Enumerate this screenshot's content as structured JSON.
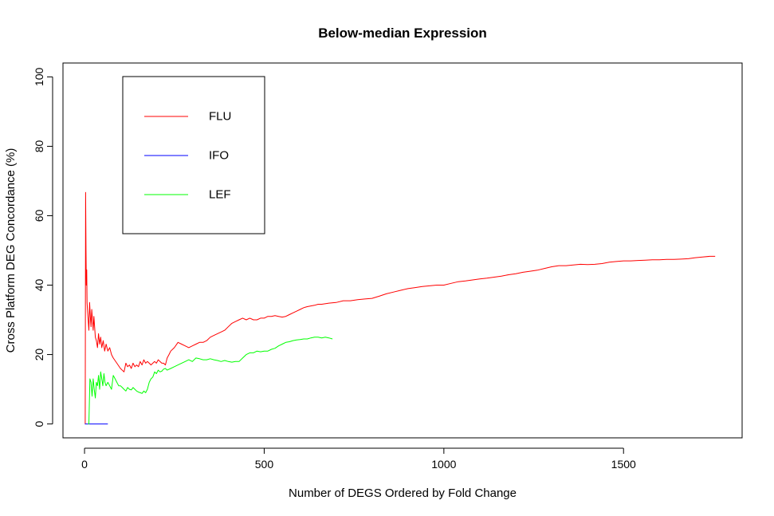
{
  "chart_data": {
    "type": "line",
    "title": "Below-median Expression",
    "xlabel": "Number of DEGS Ordered by Fold Change",
    "ylabel": "Cross Platform DEG Concordance (%)",
    "xlim": [
      -60,
      1830
    ],
    "ylim": [
      -4,
      104
    ],
    "xticks": [
      0,
      500,
      1000,
      1500
    ],
    "yticks": [
      0,
      20,
      40,
      60,
      80,
      100
    ],
    "grid": false,
    "legend_position": "top-left",
    "series": [
      {
        "name": "FLU",
        "color": "#ff0000",
        "points": [
          [
            1,
            0
          ],
          [
            2,
            0
          ],
          [
            3,
            66.7
          ],
          [
            4,
            50
          ],
          [
            5,
            40
          ],
          [
            6,
            44.4
          ],
          [
            7,
            35
          ],
          [
            8,
            33
          ],
          [
            10,
            30
          ],
          [
            12,
            27
          ],
          [
            14,
            35
          ],
          [
            16,
            31
          ],
          [
            18,
            28
          ],
          [
            20,
            33
          ],
          [
            22,
            30
          ],
          [
            24,
            27
          ],
          [
            26,
            31
          ],
          [
            28,
            28
          ],
          [
            30,
            25
          ],
          [
            33,
            24
          ],
          [
            36,
            22
          ],
          [
            39,
            26
          ],
          [
            42,
            23
          ],
          [
            45,
            25
          ],
          [
            48,
            22
          ],
          [
            52,
            24
          ],
          [
            56,
            21
          ],
          [
            60,
            23
          ],
          [
            65,
            21
          ],
          [
            70,
            22
          ],
          [
            75,
            20
          ],
          [
            80,
            19
          ],
          [
            90,
            17.5
          ],
          [
            100,
            16
          ],
          [
            110,
            15
          ],
          [
            115,
            17.5
          ],
          [
            120,
            16.5
          ],
          [
            125,
            17
          ],
          [
            130,
            16
          ],
          [
            135,
            17.5
          ],
          [
            140,
            16.5
          ],
          [
            145,
            17
          ],
          [
            150,
            16.5
          ],
          [
            155,
            18
          ],
          [
            160,
            17
          ],
          [
            165,
            18.5
          ],
          [
            170,
            17.5
          ],
          [
            175,
            18
          ],
          [
            180,
            17.5
          ],
          [
            185,
            17
          ],
          [
            190,
            17.5
          ],
          [
            195,
            18
          ],
          [
            200,
            17.5
          ],
          [
            205,
            18.5
          ],
          [
            210,
            18
          ],
          [
            215,
            17.5
          ],
          [
            220,
            17.5
          ],
          [
            225,
            17
          ],
          [
            230,
            19
          ],
          [
            235,
            20
          ],
          [
            240,
            21
          ],
          [
            250,
            22
          ],
          [
            260,
            23.5
          ],
          [
            270,
            23
          ],
          [
            280,
            22.5
          ],
          [
            290,
            22
          ],
          [
            300,
            22.5
          ],
          [
            310,
            23
          ],
          [
            320,
            23.5
          ],
          [
            330,
            23.5
          ],
          [
            340,
            24
          ],
          [
            350,
            25
          ],
          [
            360,
            25.5
          ],
          [
            370,
            26
          ],
          [
            380,
            26.5
          ],
          [
            390,
            27
          ],
          [
            400,
            28
          ],
          [
            410,
            29
          ],
          [
            420,
            29.5
          ],
          [
            430,
            30
          ],
          [
            440,
            30.5
          ],
          [
            450,
            30
          ],
          [
            460,
            30.5
          ],
          [
            470,
            30
          ],
          [
            480,
            30
          ],
          [
            490,
            30.5
          ],
          [
            500,
            30.5
          ],
          [
            510,
            31
          ],
          [
            520,
            31
          ],
          [
            530,
            31.2
          ],
          [
            540,
            31
          ],
          [
            550,
            30.8
          ],
          [
            560,
            31
          ],
          [
            570,
            31.5
          ],
          [
            580,
            32
          ],
          [
            590,
            32.5
          ],
          [
            600,
            33
          ],
          [
            610,
            33.5
          ],
          [
            620,
            33.8
          ],
          [
            630,
            34
          ],
          [
            640,
            34.2
          ],
          [
            650,
            34.5
          ],
          [
            660,
            34.5
          ],
          [
            680,
            34.8
          ],
          [
            700,
            35
          ],
          [
            720,
            35.5
          ],
          [
            740,
            35.5
          ],
          [
            760,
            35.8
          ],
          [
            780,
            36
          ],
          [
            800,
            36.2
          ],
          [
            820,
            36.8
          ],
          [
            840,
            37.5
          ],
          [
            860,
            38
          ],
          [
            880,
            38.5
          ],
          [
            900,
            39
          ],
          [
            920,
            39.3
          ],
          [
            940,
            39.6
          ],
          [
            960,
            39.8
          ],
          [
            980,
            40
          ],
          [
            1000,
            40
          ],
          [
            1020,
            40.5
          ],
          [
            1040,
            41
          ],
          [
            1060,
            41.2
          ],
          [
            1080,
            41.5
          ],
          [
            1100,
            41.8
          ],
          [
            1120,
            42
          ],
          [
            1140,
            42.3
          ],
          [
            1160,
            42.6
          ],
          [
            1180,
            43
          ],
          [
            1200,
            43.3
          ],
          [
            1220,
            43.7
          ],
          [
            1240,
            44
          ],
          [
            1260,
            44.3
          ],
          [
            1280,
            44.8
          ],
          [
            1300,
            45.3
          ],
          [
            1320,
            45.6
          ],
          [
            1340,
            45.6
          ],
          [
            1360,
            45.8
          ],
          [
            1380,
            46
          ],
          [
            1400,
            45.9
          ],
          [
            1420,
            46
          ],
          [
            1440,
            46.2
          ],
          [
            1460,
            46.6
          ],
          [
            1480,
            46.8
          ],
          [
            1500,
            47
          ],
          [
            1520,
            47
          ],
          [
            1540,
            47.1
          ],
          [
            1560,
            47.2
          ],
          [
            1580,
            47.3
          ],
          [
            1600,
            47.3
          ],
          [
            1620,
            47.4
          ],
          [
            1640,
            47.4
          ],
          [
            1660,
            47.5
          ],
          [
            1680,
            47.6
          ],
          [
            1700,
            47.9
          ],
          [
            1720,
            48.1
          ],
          [
            1740,
            48.3
          ],
          [
            1755,
            48.3
          ]
        ]
      },
      {
        "name": "IFO",
        "color": "#0000ff",
        "points": [
          [
            1,
            0
          ],
          [
            65,
            0
          ]
        ]
      },
      {
        "name": "LEF",
        "color": "#00ff00",
        "points": [
          [
            10,
            0
          ],
          [
            12,
            0
          ],
          [
            15,
            13
          ],
          [
            18,
            12
          ],
          [
            21,
            8
          ],
          [
            24,
            13
          ],
          [
            27,
            10
          ],
          [
            30,
            7.5
          ],
          [
            33,
            12
          ],
          [
            36,
            11
          ],
          [
            39,
            14
          ],
          [
            42,
            10
          ],
          [
            45,
            15
          ],
          [
            48,
            13
          ],
          [
            51,
            11
          ],
          [
            54,
            14.5
          ],
          [
            57,
            12
          ],
          [
            60,
            11
          ],
          [
            65,
            12
          ],
          [
            70,
            11
          ],
          [
            75,
            10
          ],
          [
            80,
            14
          ],
          [
            85,
            13
          ],
          [
            90,
            12
          ],
          [
            95,
            11
          ],
          [
            100,
            11
          ],
          [
            105,
            10.5
          ],
          [
            110,
            10
          ],
          [
            115,
            9.5
          ],
          [
            120,
            10.5
          ],
          [
            125,
            10
          ],
          [
            130,
            9.8
          ],
          [
            135,
            10.5
          ],
          [
            140,
            10
          ],
          [
            145,
            9.5
          ],
          [
            150,
            9.2
          ],
          [
            155,
            9
          ],
          [
            160,
            8.8
          ],
          [
            165,
            9.5
          ],
          [
            170,
            9
          ],
          [
            175,
            10
          ],
          [
            180,
            12
          ],
          [
            185,
            13
          ],
          [
            190,
            13.5
          ],
          [
            195,
            15
          ],
          [
            200,
            14.5
          ],
          [
            205,
            15.5
          ],
          [
            210,
            15
          ],
          [
            215,
            15.2
          ],
          [
            220,
            15.8
          ],
          [
            225,
            16
          ],
          [
            230,
            15.5
          ],
          [
            240,
            16
          ],
          [
            250,
            16.5
          ],
          [
            260,
            17
          ],
          [
            270,
            17.5
          ],
          [
            280,
            18
          ],
          [
            290,
            18.5
          ],
          [
            300,
            18
          ],
          [
            310,
            19
          ],
          [
            320,
            18.8
          ],
          [
            330,
            18.5
          ],
          [
            340,
            18.5
          ],
          [
            350,
            18.8
          ],
          [
            360,
            18.5
          ],
          [
            370,
            18.3
          ],
          [
            380,
            18
          ],
          [
            390,
            18.3
          ],
          [
            400,
            18
          ],
          [
            410,
            17.8
          ],
          [
            420,
            18
          ],
          [
            430,
            18
          ],
          [
            440,
            19
          ],
          [
            450,
            20
          ],
          [
            460,
            20.5
          ],
          [
            470,
            20.5
          ],
          [
            480,
            21
          ],
          [
            490,
            20.8
          ],
          [
            500,
            21
          ],
          [
            510,
            21
          ],
          [
            520,
            21.5
          ],
          [
            530,
            21.8
          ],
          [
            540,
            22.5
          ],
          [
            550,
            23
          ],
          [
            560,
            23.5
          ],
          [
            570,
            23.7
          ],
          [
            580,
            24
          ],
          [
            590,
            24.2
          ],
          [
            600,
            24.3
          ],
          [
            610,
            24.5
          ],
          [
            620,
            24.5
          ],
          [
            630,
            24.8
          ],
          [
            640,
            25
          ],
          [
            650,
            25
          ],
          [
            660,
            24.8
          ],
          [
            670,
            25
          ],
          [
            680,
            24.8
          ],
          [
            690,
            24.5
          ]
        ]
      }
    ]
  }
}
